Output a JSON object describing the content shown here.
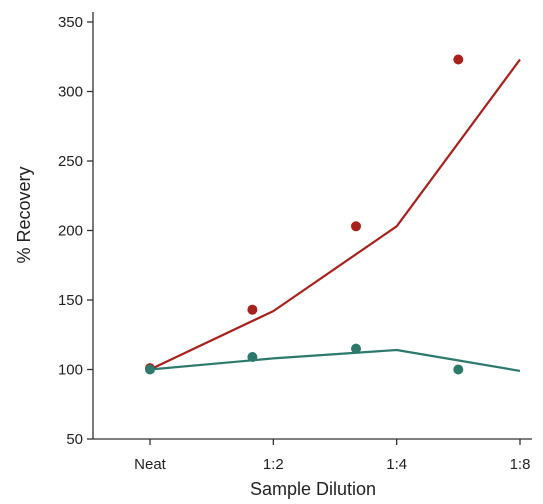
{
  "chart_data": {
    "type": "line",
    "title": "",
    "xlabel": "Sample Dilution",
    "ylabel": "% Recovery",
    "ylim": [
      50,
      350
    ],
    "yticks": [
      50,
      100,
      150,
      200,
      250,
      300,
      350
    ],
    "x_ticks": [
      "Neat",
      "1:2",
      "1:4",
      "1:8"
    ],
    "x_range": [
      0,
      3
    ],
    "grid": false,
    "legend": "none",
    "series": [
      {
        "color": "#a8211b",
        "line": {
          "x": [
            0,
            1,
            2,
            3
          ],
          "y": [
            100,
            142,
            203,
            323
          ]
        },
        "points": {
          "x": [
            0,
            0.83,
            1.67,
            2.5
          ],
          "y": [
            101,
            143,
            203,
            323
          ]
        }
      },
      {
        "color": "#2d7a6c",
        "line": {
          "x": [
            0,
            1,
            2,
            3
          ],
          "y": [
            100,
            108,
            114,
            99
          ]
        },
        "points": {
          "x": [
            0,
            0.83,
            1.67,
            2.5
          ],
          "y": [
            100,
            109,
            115,
            100
          ]
        }
      }
    ]
  }
}
